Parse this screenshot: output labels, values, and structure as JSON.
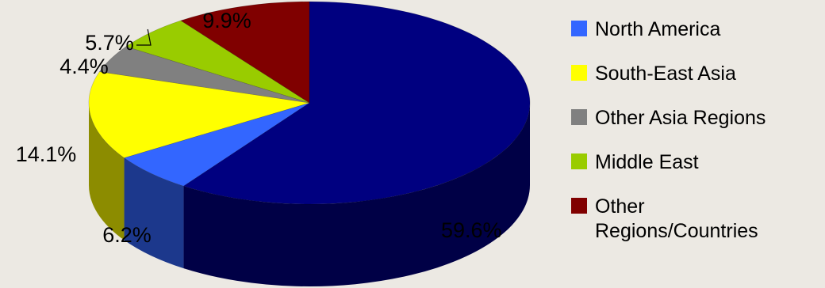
{
  "chart_data": {
    "type": "pie",
    "style": "3d-exploded-ring",
    "categories": [
      "North America",
      "South-East Asia",
      "Other Asia Regions",
      "Middle East",
      "Other Regions/Countries"
    ],
    "values": [
      6.2,
      14.1,
      4.4,
      5.7,
      9.9
    ],
    "label_texts": [
      "6.2%",
      "14.1%",
      "4.4%",
      "5.7%",
      "9.9%"
    ],
    "unlabeled_slice": {
      "value": 59.6,
      "label": "59.6%",
      "color": "#000080"
    },
    "colors": [
      "#3366ff",
      "#ffff00",
      "#808080",
      "#99cc00",
      "#800000"
    ],
    "legend": {
      "position": "right",
      "entries": [
        "North America",
        "South-East Asia",
        "Other Asia Regions",
        "Middle East",
        "Other Regions/Countries"
      ]
    }
  }
}
